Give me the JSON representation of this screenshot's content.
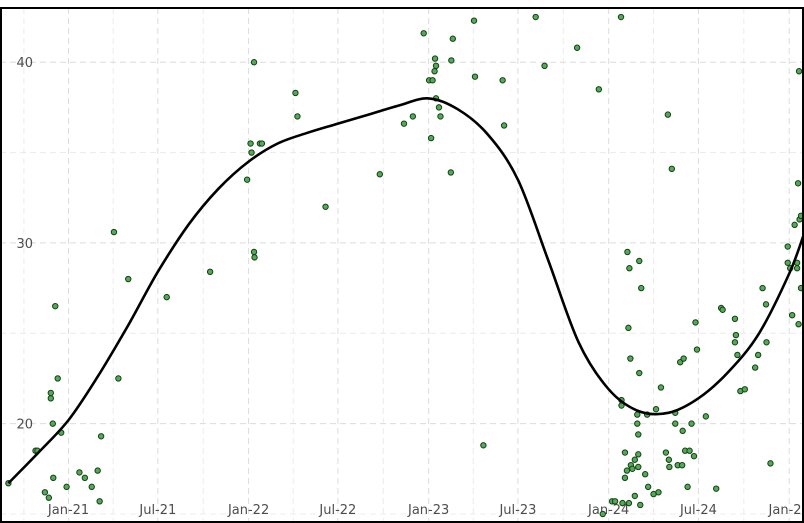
{
  "chart_data": {
    "type": "scatter",
    "title": "",
    "xlabel": "",
    "ylabel": "",
    "x_range": [
      "2020-08-15",
      "2025-01-31"
    ],
    "ylim": [
      14.5,
      43
    ],
    "grid": true,
    "legend": "none",
    "x_ticks": [
      {
        "date": "2021-01-01",
        "label": "Jan-21"
      },
      {
        "date": "2021-07-01",
        "label": "Jul-21"
      },
      {
        "date": "2022-01-01",
        "label": "Jan-22"
      },
      {
        "date": "2022-07-01",
        "label": "Jul-22"
      },
      {
        "date": "2023-01-01",
        "label": "Jan-23"
      },
      {
        "date": "2023-07-01",
        "label": "Jul-23"
      },
      {
        "date": "2024-01-01",
        "label": "Jan-24"
      },
      {
        "date": "2024-07-01",
        "label": "Jul-24"
      },
      {
        "date": "2025-01-01",
        "label": "Jan-25"
      }
    ],
    "y_ticks": [
      {
        "value": 20,
        "label": "20"
      },
      {
        "value": 30,
        "label": "30"
      },
      {
        "value": 40,
        "label": "40"
      }
    ],
    "colors": {
      "points": "#4caf50",
      "point_outline": "#1b3d1c",
      "smooth_line": "#000000"
    },
    "series": [
      {
        "kind": "points",
        "points": [
          [
            "2020-09-01",
            16.7
          ],
          [
            "2020-10-26",
            18.5
          ],
          [
            "2020-10-30",
            18.5
          ],
          [
            "2020-11-14",
            16.2
          ],
          [
            "2020-11-22",
            15.9
          ],
          [
            "2020-11-26",
            21.4
          ],
          [
            "2020-11-26",
            21.7
          ],
          [
            "2020-11-30",
            20
          ],
          [
            "2020-12-01",
            17
          ],
          [
            "2020-12-05",
            26.5
          ],
          [
            "2020-12-10",
            22.5
          ],
          [
            "2020-12-17",
            19.5
          ],
          [
            "2020-12-28",
            16.5
          ],
          [
            "2021-01-23",
            17.3
          ],
          [
            "2021-02-03",
            17
          ],
          [
            "2021-02-17",
            16.5
          ],
          [
            "2021-03-01",
            17.4
          ],
          [
            "2021-03-05",
            15.7
          ],
          [
            "2021-03-08",
            19.3
          ],
          [
            "2021-04-03",
            30.6
          ],
          [
            "2021-04-12",
            22.5
          ],
          [
            "2021-05-02",
            28
          ],
          [
            "2021-07-19",
            27
          ],
          [
            "2021-10-15",
            28.4
          ],
          [
            "2021-12-29",
            33.5
          ],
          [
            "2022-01-05",
            35.5
          ],
          [
            "2022-01-07",
            35
          ],
          [
            "2022-01-12",
            40
          ],
          [
            "2022-01-12",
            29.5
          ],
          [
            "2022-01-13",
            29.2
          ],
          [
            "2022-01-24",
            35.5
          ],
          [
            "2022-01-28",
            35.5
          ],
          [
            "2022-04-06",
            38.3
          ],
          [
            "2022-04-10",
            37
          ],
          [
            "2022-06-06",
            32
          ],
          [
            "2022-09-24",
            33.8
          ],
          [
            "2022-11-12",
            36.6
          ],
          [
            "2022-11-30",
            37
          ],
          [
            "2022-12-22",
            41.6
          ],
          [
            "2023-01-02",
            39
          ],
          [
            "2023-01-06",
            35.8
          ],
          [
            "2023-01-09",
            39
          ],
          [
            "2023-01-13",
            39.5
          ],
          [
            "2023-01-14",
            40.2
          ],
          [
            "2023-01-16",
            39.8
          ],
          [
            "2023-01-16",
            38
          ],
          [
            "2023-01-22",
            37.5
          ],
          [
            "2023-01-25",
            37
          ],
          [
            "2023-02-15",
            33.9
          ],
          [
            "2023-02-16",
            40.1
          ],
          [
            "2023-02-19",
            41.3
          ],
          [
            "2023-04-03",
            42.3
          ],
          [
            "2023-04-05",
            39.2
          ],
          [
            "2023-04-22",
            18.8
          ],
          [
            "2023-05-31",
            39
          ],
          [
            "2023-06-03",
            36.5
          ],
          [
            "2023-08-06",
            42.5
          ],
          [
            "2023-08-24",
            39.8
          ],
          [
            "2023-10-29",
            40.8
          ],
          [
            "2023-12-12",
            38.5
          ],
          [
            "2023-12-20",
            15
          ],
          [
            "2024-01-08",
            15.7
          ],
          [
            "2024-01-14",
            15.7
          ],
          [
            "2024-01-26",
            42.5
          ],
          [
            "2024-01-27",
            21.3
          ],
          [
            "2024-01-27",
            21
          ],
          [
            "2024-01-29",
            15.6
          ],
          [
            "2024-02-03",
            17
          ],
          [
            "2024-02-03",
            18.4
          ],
          [
            "2024-02-07",
            17.4
          ],
          [
            "2024-02-08",
            29.5
          ],
          [
            "2024-02-10",
            25.3
          ],
          [
            "2024-02-11",
            15.6
          ],
          [
            "2024-02-12",
            28.6
          ],
          [
            "2024-02-14",
            23.6
          ],
          [
            "2024-02-15",
            17.7
          ],
          [
            "2024-02-18",
            17.5
          ],
          [
            "2024-02-23",
            16
          ],
          [
            "2024-02-23",
            18
          ],
          [
            "2024-02-28",
            20
          ],
          [
            "2024-02-28",
            20.5
          ],
          [
            "2024-03-01",
            18.3
          ],
          [
            "2024-03-01",
            17.6
          ],
          [
            "2024-03-01",
            19.4
          ],
          [
            "2024-03-03",
            22.8
          ],
          [
            "2024-03-03",
            29
          ],
          [
            "2024-03-05",
            15.5
          ],
          [
            "2024-03-07",
            27.5
          ],
          [
            "2024-03-15",
            17.2
          ],
          [
            "2024-03-19",
            20.5
          ],
          [
            "2024-03-21",
            16.5
          ],
          [
            "2024-04-01",
            16.1
          ],
          [
            "2024-04-06",
            20.8
          ],
          [
            "2024-04-11",
            16.2
          ],
          [
            "2024-04-16",
            22
          ],
          [
            "2024-04-26",
            18.4
          ],
          [
            "2024-04-30",
            37.1
          ],
          [
            "2024-05-02",
            18
          ],
          [
            "2024-05-03",
            17.6
          ],
          [
            "2024-05-08",
            34.1
          ],
          [
            "2024-05-15",
            20
          ],
          [
            "2024-05-15",
            20.6
          ],
          [
            "2024-05-20",
            17.7
          ],
          [
            "2024-05-25",
            23.4
          ],
          [
            "2024-05-29",
            17.7
          ],
          [
            "2024-05-30",
            19.6
          ],
          [
            "2024-06-01",
            23.6
          ],
          [
            "2024-06-04",
            18.5
          ],
          [
            "2024-06-09",
            16.5
          ],
          [
            "2024-06-13",
            18.5
          ],
          [
            "2024-06-17",
            20
          ],
          [
            "2024-06-22",
            18.2
          ],
          [
            "2024-06-25",
            25.6
          ],
          [
            "2024-06-28",
            24.1
          ],
          [
            "2024-07-16",
            20.4
          ],
          [
            "2024-08-06",
            16.4
          ],
          [
            "2024-08-16",
            26.4
          ],
          [
            "2024-08-19",
            26.3
          ],
          [
            "2024-09-13",
            24.5
          ],
          [
            "2024-09-13",
            25.8
          ],
          [
            "2024-09-15",
            24.9
          ],
          [
            "2024-09-18",
            23.8
          ],
          [
            "2024-09-24",
            21.8
          ],
          [
            "2024-10-03",
            21.9
          ],
          [
            "2024-10-24",
            23.1
          ],
          [
            "2024-10-30",
            23.8
          ],
          [
            "2024-11-08",
            27.5
          ],
          [
            "2024-11-15",
            26.6
          ],
          [
            "2024-11-16",
            24.5
          ],
          [
            "2024-11-24",
            17.8
          ],
          [
            "2024-12-29",
            29.8
          ],
          [
            "2024-12-29",
            28.9
          ],
          [
            "2025-01-03",
            28.6
          ],
          [
            "2025-01-07",
            26
          ],
          [
            "2025-01-12",
            31
          ],
          [
            "2025-01-17",
            28.9
          ],
          [
            "2025-01-17",
            28.6
          ],
          [
            "2025-01-19",
            33.3
          ],
          [
            "2025-01-20",
            25.5
          ],
          [
            "2025-01-21",
            39.5
          ],
          [
            "2025-01-22",
            31.3
          ],
          [
            "2025-01-25",
            27.5
          ],
          [
            "2025-01-25",
            31.5
          ]
        ]
      },
      {
        "kind": "smooth_line",
        "points": [
          [
            "2020-09-01",
            16.7
          ],
          [
            "2020-11-01",
            18.4
          ],
          [
            "2021-01-01",
            20.2
          ],
          [
            "2021-03-01",
            22.6
          ],
          [
            "2021-05-01",
            25.4
          ],
          [
            "2021-07-01",
            28.4
          ],
          [
            "2021-09-01",
            31.0
          ],
          [
            "2021-11-01",
            33.0
          ],
          [
            "2022-01-01",
            34.5
          ],
          [
            "2022-03-01",
            35.5
          ],
          [
            "2022-05-01",
            36.1
          ],
          [
            "2022-07-01",
            36.6
          ],
          [
            "2022-09-01",
            37.1
          ],
          [
            "2022-11-01",
            37.6
          ],
          [
            "2023-01-01",
            38.0
          ],
          [
            "2023-03-01",
            37.4
          ],
          [
            "2023-05-01",
            36.0
          ],
          [
            "2023-07-01",
            33.5
          ],
          [
            "2023-09-01",
            29.0
          ],
          [
            "2023-11-01",
            24.5
          ],
          [
            "2024-01-01",
            21.9
          ],
          [
            "2024-03-01",
            20.7
          ],
          [
            "2024-05-01",
            20.6
          ],
          [
            "2024-07-01",
            21.4
          ],
          [
            "2024-09-01",
            22.9
          ],
          [
            "2024-11-01",
            25.0
          ],
          [
            "2025-01-01",
            28.3
          ],
          [
            "2025-01-31",
            30.5
          ]
        ]
      }
    ]
  }
}
